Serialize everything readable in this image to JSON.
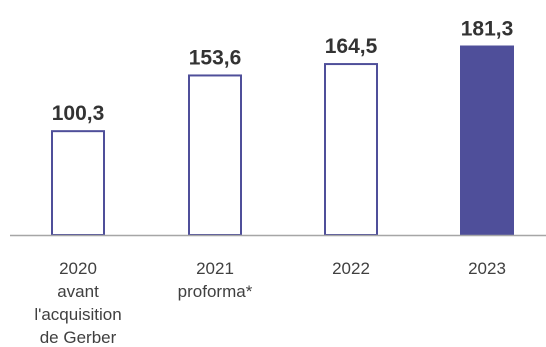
{
  "chart_data": {
    "type": "bar",
    "categories": [
      [
        "2020",
        "avant",
        "l'acquisition",
        "de Gerber"
      ],
      [
        "2021",
        "proforma*"
      ],
      [
        "2022"
      ],
      [
        "2023"
      ]
    ],
    "values": [
      100.3,
      153.6,
      164.5,
      181.3
    ],
    "value_labels": [
      "100,3",
      "153,6",
      "164,5",
      "181,3"
    ],
    "highlight_index": 3,
    "title": "",
    "xlabel": "",
    "ylabel": "",
    "ylim": [
      0,
      200
    ],
    "grid": false,
    "legend": "none"
  },
  "colors": {
    "bar_outline": "#4f4f9a",
    "bar_highlight": "#4f4f9a",
    "bar_fill": "#ffffff",
    "axis": "#a6a6a6",
    "value_text": "#333333",
    "category_text": "#404040"
  }
}
